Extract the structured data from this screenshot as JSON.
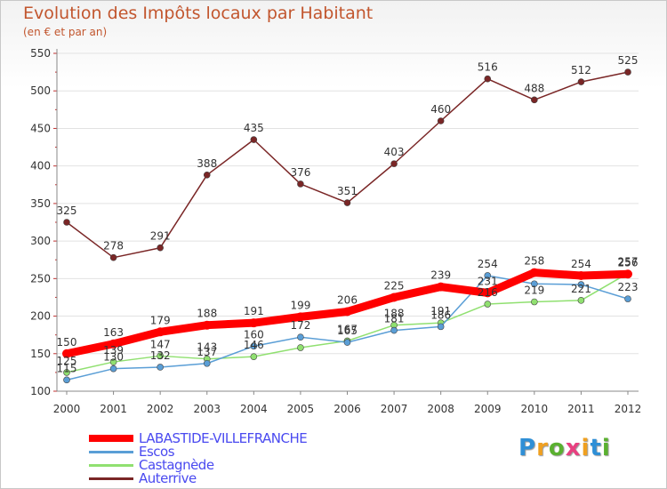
{
  "chart_data": {
    "type": "line",
    "title": "Evolution des Impôts locaux par Habitant",
    "subtitle": "(en € et par an)",
    "xlabel": "",
    "ylabel": "",
    "ylim": [
      100,
      550
    ],
    "yticks": [
      100,
      150,
      200,
      250,
      300,
      350,
      400,
      450,
      500,
      550
    ],
    "categories": [
      "2000",
      "2001",
      "2002",
      "2003",
      "2004",
      "2005",
      "2006",
      "2007",
      "2008",
      "2009",
      "2010",
      "2011",
      "2012"
    ],
    "series": [
      {
        "name": "Auterrive",
        "color": "#7a2626",
        "values": [
          325,
          278,
          291,
          388,
          435,
          376,
          351,
          403,
          460,
          516,
          488,
          512,
          525
        ],
        "labels": [
          "325",
          "278",
          "291",
          "388",
          "435",
          "376",
          "351",
          "403",
          "460",
          "516",
          "488",
          "512",
          "525"
        ]
      },
      {
        "name": "Castagnède",
        "color": "#90e070",
        "values": [
          125,
          139,
          147,
          143,
          146,
          158,
          167,
          188,
          191,
          216,
          219,
          221,
          257
        ],
        "labels": [
          "125",
          "139",
          "147",
          "143",
          "146",
          "",
          "167",
          "188",
          "191",
          "216",
          "219",
          "221",
          "257"
        ]
      },
      {
        "name": "Escos",
        "color": "#5a9ed6",
        "values": [
          115,
          130,
          132,
          137,
          160,
          172,
          165,
          181,
          186,
          254,
          243,
          242,
          223
        ],
        "labels": [
          "115",
          "130",
          "132",
          "137",
          "160",
          "172",
          "165",
          "181",
          "186",
          "254",
          "",
          "",
          "223"
        ]
      },
      {
        "name": "LABASTIDE-VILLEFRANCHE",
        "color": "#ff0000",
        "values": [
          150,
          163,
          179,
          188,
          191,
          199,
          206,
          225,
          239,
          231,
          258,
          254,
          256
        ],
        "labels": [
          "150",
          "163",
          "179",
          "188",
          "191",
          "199",
          "206",
          "225",
          "239",
          "231",
          "258",
          "254",
          "256"
        ]
      }
    ],
    "legend": [
      {
        "name": "LABASTIDE-VILLEFRANCHE",
        "color": "#ff0000"
      },
      {
        "name": "Escos",
        "color": "#5a9ed6"
      },
      {
        "name": "Castagnède",
        "color": "#90e070"
      },
      {
        "name": "Auterrive",
        "color": "#7a2626"
      }
    ]
  },
  "logo": {
    "letters": [
      "P",
      "r",
      "o",
      "x",
      "i",
      "t",
      "i"
    ],
    "colors": [
      "#2f8fd6",
      "#f0a020",
      "#5ab030",
      "#e84080",
      "#f0a020",
      "#2f8fd6",
      "#5ab030"
    ]
  }
}
